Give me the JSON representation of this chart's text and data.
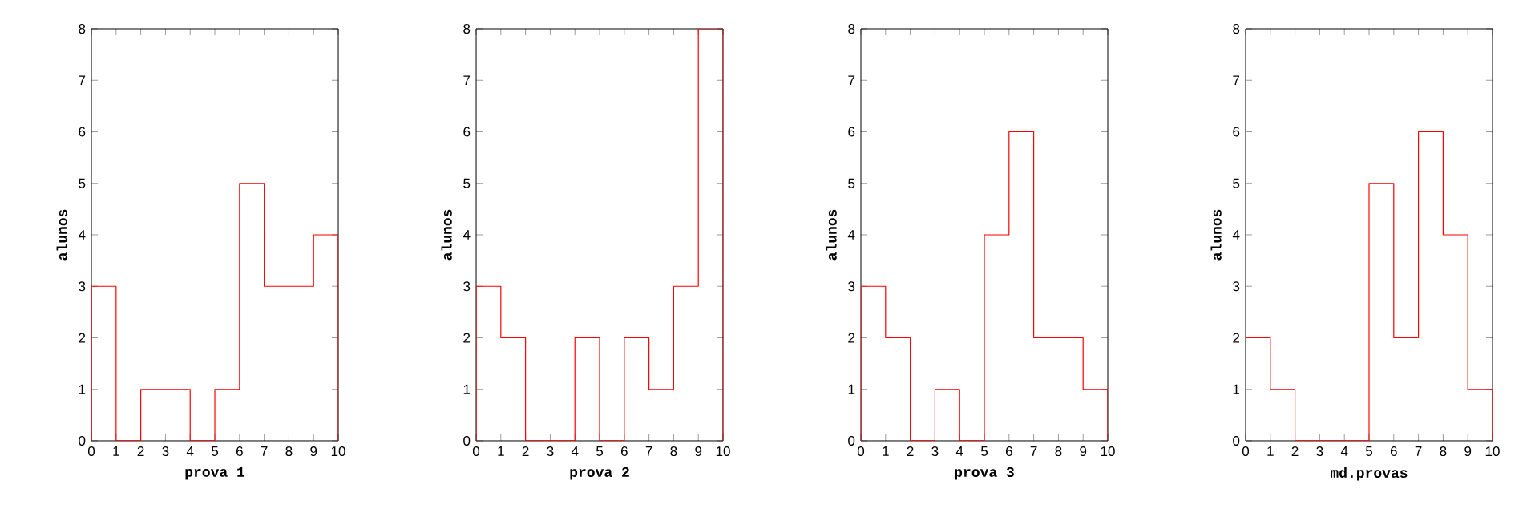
{
  "chart_data": [
    {
      "type": "histogram",
      "xlabel": "prova 1",
      "ylabel": "alunos",
      "bins": [
        0,
        1,
        2,
        3,
        4,
        5,
        6,
        7,
        8,
        9,
        10
      ],
      "values": [
        3,
        0,
        1,
        1,
        0,
        1,
        5,
        3,
        3,
        4
      ],
      "color": "#ff0000",
      "xlim": [
        0,
        10
      ],
      "ylim": [
        0,
        8
      ],
      "xticks": [
        0,
        1,
        2,
        3,
        4,
        5,
        6,
        7,
        8,
        9,
        10
      ],
      "yticks": [
        0,
        1,
        2,
        3,
        4,
        5,
        6,
        7,
        8
      ]
    },
    {
      "type": "histogram",
      "xlabel": "prova 2",
      "ylabel": "alunos",
      "bins": [
        0,
        1,
        2,
        3,
        4,
        5,
        6,
        7,
        8,
        9,
        10
      ],
      "values": [
        3,
        2,
        0,
        0,
        2,
        0,
        2,
        1,
        3,
        8
      ],
      "color": "#ff0000",
      "xlim": [
        0,
        10
      ],
      "ylim": [
        0,
        8
      ],
      "xticks": [
        0,
        1,
        2,
        3,
        4,
        5,
        6,
        7,
        8,
        9,
        10
      ],
      "yticks": [
        0,
        1,
        2,
        3,
        4,
        5,
        6,
        7,
        8
      ]
    },
    {
      "type": "histogram",
      "xlabel": "prova 3",
      "ylabel": "alunos",
      "bins": [
        0,
        1,
        2,
        3,
        4,
        5,
        6,
        7,
        8,
        9,
        10
      ],
      "values": [
        3,
        2,
        0,
        1,
        0,
        4,
        6,
        2,
        2,
        1
      ],
      "color": "#ff0000",
      "xlim": [
        0,
        10
      ],
      "ylim": [
        0,
        8
      ],
      "xticks": [
        0,
        1,
        2,
        3,
        4,
        5,
        6,
        7,
        8,
        9,
        10
      ],
      "yticks": [
        0,
        1,
        2,
        3,
        4,
        5,
        6,
        7,
        8
      ]
    },
    {
      "type": "histogram",
      "xlabel": "md.provas",
      "ylabel": "alunos",
      "bins": [
        0,
        1,
        2,
        3,
        4,
        5,
        6,
        7,
        8,
        9,
        10
      ],
      "values": [
        2,
        1,
        0,
        0,
        0,
        5,
        2,
        6,
        4,
        1
      ],
      "color": "#ff0000",
      "xlim": [
        0,
        10
      ],
      "ylim": [
        0,
        8
      ],
      "xticks": [
        0,
        1,
        2,
        3,
        4,
        5,
        6,
        7,
        8,
        9,
        10
      ],
      "yticks": [
        0,
        1,
        2,
        3,
        4,
        5,
        6,
        7,
        8
      ]
    }
  ]
}
